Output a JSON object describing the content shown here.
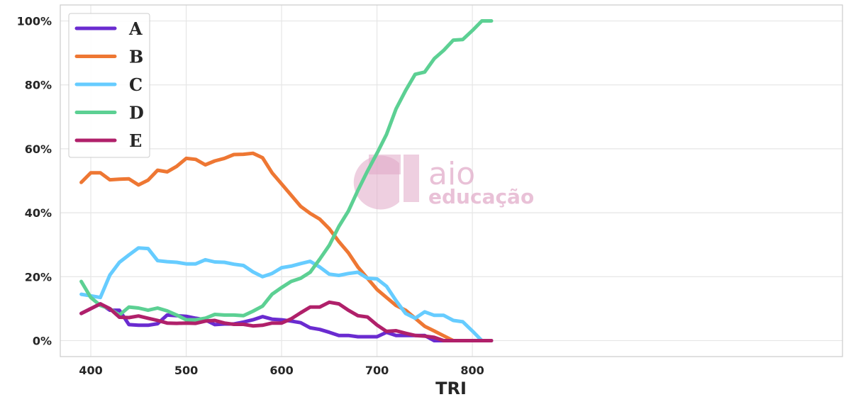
{
  "chart_data": {
    "type": "line",
    "xlabel": "TRI",
    "ylabel": "",
    "xlim": [
      368,
      1188
    ],
    "ylim": [
      -5,
      105
    ],
    "xticks": [
      400,
      500,
      600,
      700,
      800
    ],
    "yticks": [
      0,
      20,
      40,
      60,
      80,
      100
    ],
    "ytick_labels": [
      "0%",
      "20%",
      "40%",
      "60%",
      "80%",
      "100%"
    ],
    "grid": true,
    "legend_position": "top-left",
    "x": [
      390,
      400,
      410,
      420,
      430,
      440,
      450,
      460,
      470,
      480,
      490,
      500,
      510,
      520,
      530,
      540,
      550,
      560,
      570,
      580,
      590,
      600,
      610,
      620,
      630,
      640,
      650,
      660,
      670,
      680,
      690,
      700,
      710,
      720,
      730,
      740,
      750,
      760,
      770,
      780,
      790,
      800,
      810,
      820
    ],
    "series": [
      {
        "name": "A",
        "color": "#6a2bd0",
        "values": [
          8.5,
          10,
          11.5,
          9.5,
          9.5,
          5,
          4.8,
          4.8,
          5.3,
          8,
          7.8,
          7.6,
          7,
          6.5,
          5,
          5.2,
          5.2,
          5.8,
          6.5,
          7.5,
          6.7,
          6.5,
          6.1,
          5.6,
          4,
          3.5,
          2.6,
          1.6,
          1.6,
          1.2,
          1.2,
          1.2,
          2.6,
          1.6,
          1.6,
          1.6,
          1.6,
          0,
          0,
          0,
          0,
          0,
          0,
          0
        ]
      },
      {
        "name": "B",
        "color": "#ee7733",
        "values": [
          49.5,
          52.5,
          52.5,
          50.3,
          50.5,
          50.6,
          48.7,
          50.2,
          53.3,
          52.8,
          54.5,
          57,
          56.7,
          55,
          56.2,
          57,
          58.2,
          58.3,
          58.6,
          57.2,
          52.5,
          49,
          45.5,
          42,
          39.8,
          38,
          35,
          31,
          27.5,
          23,
          19.5,
          16,
          13.5,
          11,
          9.5,
          7,
          4.5,
          3,
          1.5,
          0,
          0,
          0,
          0,
          0
        ]
      },
      {
        "name": "C",
        "color": "#66ccff",
        "values": [
          14.5,
          14,
          13.5,
          20.5,
          24.5,
          26.8,
          29,
          28.8,
          25,
          24.7,
          24.5,
          24,
          24,
          25.3,
          24.6,
          24.5,
          23.9,
          23.5,
          21.5,
          20,
          21,
          22.8,
          23.3,
          24.1,
          24.8,
          23,
          20.8,
          20.4,
          21,
          21.4,
          19.5,
          19.3,
          17,
          12.5,
          8.5,
          7,
          9,
          7.9,
          7.9,
          6.3,
          5.9,
          3,
          0,
          0
        ]
      },
      {
        "name": "D",
        "color": "#5cd093",
        "values": [
          18.5,
          13.5,
          11,
          10,
          8,
          10.5,
          10.2,
          9.5,
          10.2,
          9.3,
          8,
          6.5,
          6.5,
          7,
          8.2,
          8,
          8,
          7.8,
          9.2,
          10.8,
          14.5,
          16.6,
          18.5,
          19.5,
          21.4,
          25.5,
          29.8,
          35.7,
          40.5,
          47,
          53,
          58.6,
          64.5,
          72.5,
          78.2,
          83.3,
          84,
          88.2,
          90.8,
          94,
          94.2,
          97,
          100,
          100
        ]
      },
      {
        "name": "E",
        "color": "#b0206a",
        "values": [
          8.5,
          10,
          11.5,
          10,
          7.3,
          7.2,
          7.7,
          7,
          6.3,
          5.5,
          5.4,
          5.5,
          5.4,
          6.1,
          6.3,
          5.5,
          5.1,
          5.1,
          4.6,
          4.8,
          5.5,
          5.5,
          6.8,
          8.7,
          10.5,
          10.5,
          12,
          11.5,
          9.5,
          7.8,
          7.4,
          4.9,
          2.9,
          3.1,
          2.3,
          1.6,
          1.4,
          1,
          0,
          0,
          0,
          0,
          0,
          0
        ]
      }
    ]
  },
  "watermark": {
    "brand": "aio",
    "subtitle": "educação",
    "color": "#e0a8c7"
  }
}
